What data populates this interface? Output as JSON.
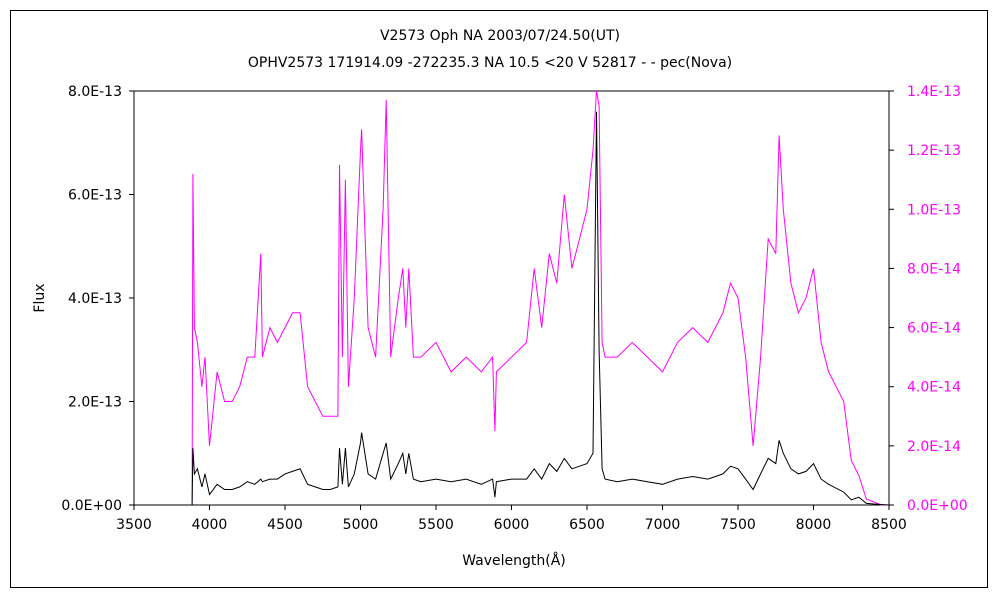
{
  "chart_data": {
    "type": "line",
    "title": "V2573 Oph    NA    2003/07/24.50(UT)",
    "subtitle": "OPHV2573 171914.09 -272235.3 NA 10.5 <20 V 52817 - - pec(Nova)",
    "xlabel": "Wavelength(Å)",
    "ylabel": "Flux",
    "xlim": [
      3500,
      8500
    ],
    "ylim": [
      0,
      8e-13
    ],
    "y2lim": [
      0,
      1.4e-13
    ],
    "grid": false,
    "legend": "none",
    "x_ticks": [
      "3500",
      "4000",
      "4500",
      "5000",
      "5500",
      "6000",
      "6500",
      "7000",
      "7500",
      "8000",
      "8500"
    ],
    "y_ticks": [
      "0.0E+00",
      "2.0E-13",
      "4.0E-13",
      "6.0E-13",
      "8.0E-13"
    ],
    "y2_ticks": [
      "0.0E+00",
      "2.0E-14",
      "4.0E-14",
      "6.0E-14",
      "8.0E-14",
      "1.0E-13",
      "1.2E-13",
      "1.4E-13"
    ],
    "series": [
      {
        "axis": "left",
        "color": "#000000",
        "x": [
          3885,
          3890,
          3900,
          3920,
          3950,
          3970,
          4000,
          4050,
          4100,
          4150,
          4200,
          4250,
          4300,
          4340,
          4350,
          4400,
          4450,
          4500,
          4550,
          4600,
          4650,
          4700,
          4750,
          4800,
          4850,
          4861,
          4880,
          4900,
          4920,
          4959,
          5000,
          5007,
          5050,
          5100,
          5150,
          5170,
          5200,
          5250,
          5280,
          5300,
          5320,
          5350,
          5400,
          5500,
          5600,
          5700,
          5800,
          5875,
          5890,
          5900,
          6000,
          6100,
          6150,
          6200,
          6250,
          6300,
          6350,
          6400,
          6450,
          6500,
          6540,
          6563,
          6580,
          6600,
          6620,
          6700,
          6800,
          6900,
          7000,
          7100,
          7200,
          7300,
          7400,
          7450,
          7500,
          7550,
          7600,
          7650,
          7700,
          7750,
          7772,
          7800,
          7850,
          7900,
          7950,
          8000,
          8050,
          8100,
          8200,
          8250,
          8300,
          8350,
          8400,
          8450,
          8500
        ],
        "y": [
          0,
          1.1e-13,
          6e-14,
          7e-14,
          3.5e-14,
          6e-14,
          2e-14,
          4e-14,
          3e-14,
          3e-14,
          3.5e-14,
          4.5e-14,
          4e-14,
          5e-14,
          4.5e-14,
          5e-14,
          5e-14,
          6e-14,
          6.5e-14,
          7e-14,
          4e-14,
          3.5e-14,
          3e-14,
          3e-14,
          3.5e-14,
          1.1e-13,
          4e-14,
          1.1e-13,
          3.5e-14,
          6e-14,
          1.2e-13,
          1.4e-13,
          6e-14,
          5e-14,
          1e-13,
          1.2e-13,
          5e-14,
          8e-14,
          1e-13,
          6e-14,
          1e-13,
          5e-14,
          4.5e-14,
          5e-14,
          4.5e-14,
          5e-14,
          4e-14,
          5e-14,
          1.5e-14,
          4.5e-14,
          5e-14,
          5e-14,
          7e-14,
          5e-14,
          8e-14,
          6.5e-14,
          9e-14,
          7e-14,
          7.5e-14,
          8e-14,
          1e-13,
          7.6e-13,
          3e-13,
          7e-14,
          5e-14,
          4.5e-14,
          5e-14,
          4.5e-14,
          4e-14,
          5e-14,
          5.5e-14,
          5e-14,
          6e-14,
          7.5e-14,
          7e-14,
          5e-14,
          3e-14,
          6e-14,
          9e-14,
          8e-14,
          1.25e-13,
          1e-13,
          7e-14,
          6e-14,
          6.5e-14,
          8e-14,
          5e-14,
          4e-14,
          2.5e-14,
          1e-14,
          1.5e-14,
          3e-15,
          2e-15,
          1e-15,
          0
        ]
      },
      {
        "axis": "right",
        "color": "#ff00ff",
        "x": [
          3885,
          3890,
          3900,
          3920,
          3950,
          3970,
          4000,
          4050,
          4100,
          4150,
          4200,
          4250,
          4300,
          4340,
          4350,
          4400,
          4450,
          4500,
          4550,
          4600,
          4650,
          4700,
          4750,
          4800,
          4850,
          4861,
          4880,
          4900,
          4920,
          4959,
          5000,
          5007,
          5050,
          5100,
          5150,
          5170,
          5200,
          5250,
          5280,
          5300,
          5320,
          5350,
          5400,
          5500,
          5600,
          5700,
          5800,
          5875,
          5890,
          5900,
          6000,
          6100,
          6150,
          6200,
          6250,
          6300,
          6350,
          6400,
          6450,
          6500,
          6540,
          6563,
          6580,
          6600,
          6620,
          6700,
          6800,
          6900,
          7000,
          7100,
          7200,
          7300,
          7400,
          7450,
          7500,
          7550,
          7600,
          7650,
          7700,
          7750,
          7772,
          7800,
          7850,
          7900,
          7950,
          8000,
          8050,
          8100,
          8200,
          8250,
          8300,
          8350,
          8400,
          8450,
          8500
        ],
        "y": [
          0,
          1.12e-13,
          6e-14,
          5.5e-14,
          4e-14,
          5e-14,
          2e-14,
          4.5e-14,
          3.5e-14,
          3.5e-14,
          4e-14,
          5e-14,
          5e-14,
          8.5e-14,
          5e-14,
          6e-14,
          5.5e-14,
          6e-14,
          6.5e-14,
          6.5e-14,
          4e-14,
          3.5e-14,
          3e-14,
          3e-14,
          3e-14,
          1.15e-13,
          5e-14,
          1.1e-13,
          4e-14,
          7e-14,
          1.2e-13,
          1.27e-13,
          6e-14,
          5e-14,
          1e-13,
          1.37e-13,
          5e-14,
          7e-14,
          8e-14,
          6e-14,
          8e-14,
          5e-14,
          5e-14,
          5.5e-14,
          4.5e-14,
          5e-14,
          4.5e-14,
          5e-14,
          2.5e-14,
          4.5e-14,
          5e-14,
          5.5e-14,
          8e-14,
          6e-14,
          8.5e-14,
          7.5e-14,
          1.05e-13,
          8e-14,
          9e-14,
          1e-13,
          1.2e-13,
          1.4e-13,
          1.35e-13,
          5.5e-14,
          5e-14,
          5e-14,
          5.5e-14,
          5e-14,
          4.5e-14,
          5.5e-14,
          6e-14,
          5.5e-14,
          6.5e-14,
          7.5e-14,
          7e-14,
          5e-14,
          2e-14,
          5e-14,
          9e-14,
          8.5e-14,
          1.25e-13,
          1e-13,
          7.5e-14,
          6.5e-14,
          7e-14,
          8e-14,
          5.5e-14,
          4.5e-14,
          3.5e-14,
          1.5e-14,
          1e-14,
          2e-15,
          1e-15,
          0,
          0
        ]
      }
    ]
  },
  "colors": {
    "axis_right": "#ff00ff",
    "text": "#000000"
  }
}
